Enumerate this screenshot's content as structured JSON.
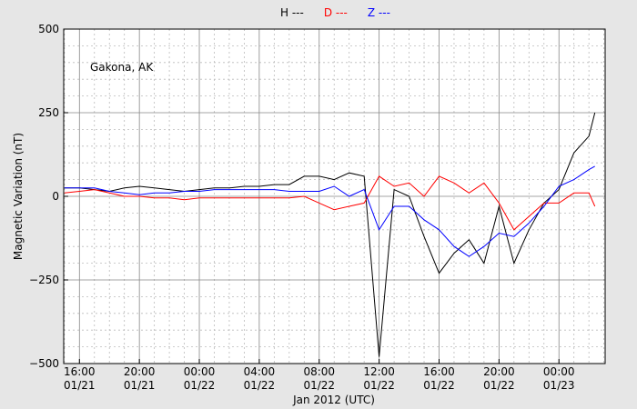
{
  "chart_data": {
    "type": "line",
    "annotation": "Gakona, AK",
    "ylabel": "Magnetic Variation (nT)",
    "xlabel": "Jan 2012 (UTC)",
    "x": [
      "2012-01-21T15:00",
      "2012-01-21T16:00",
      "2012-01-21T17:00",
      "2012-01-21T18:00",
      "2012-01-21T19:00",
      "2012-01-21T20:00",
      "2012-01-21T21:00",
      "2012-01-21T22:00",
      "2012-01-21T23:00",
      "2012-01-22T00:00",
      "2012-01-22T01:00",
      "2012-01-22T02:00",
      "2012-01-22T03:00",
      "2012-01-22T04:00",
      "2012-01-22T05:00",
      "2012-01-22T06:00",
      "2012-01-22T07:00",
      "2012-01-22T08:00",
      "2012-01-22T09:00",
      "2012-01-22T10:00",
      "2012-01-22T11:00",
      "2012-01-22T12:00",
      "2012-01-22T13:00",
      "2012-01-22T14:00",
      "2012-01-22T15:00",
      "2012-01-22T16:00",
      "2012-01-22T17:00",
      "2012-01-22T18:00",
      "2012-01-22T19:00",
      "2012-01-22T20:00",
      "2012-01-22T21:00",
      "2012-01-22T22:00",
      "2012-01-22T23:00",
      "2012-01-23T00:00",
      "2012-01-23T01:00",
      "2012-01-23T02:00",
      "2012-01-23T02:24"
    ],
    "series": [
      {
        "name": "H ---",
        "color": "#000000",
        "values": [
          25,
          25,
          20,
          15,
          25,
          30,
          25,
          20,
          15,
          20,
          25,
          25,
          30,
          30,
          35,
          35,
          60,
          60,
          50,
          70,
          60,
          -480,
          20,
          0,
          -120,
          -230,
          -170,
          -130,
          -200,
          -30,
          -200,
          -100,
          -20,
          20,
          130,
          180,
          250
        ]
      },
      {
        "name": "D ---",
        "color": "#ff0000",
        "values": [
          10,
          15,
          20,
          10,
          0,
          0,
          -5,
          -5,
          -10,
          -5,
          -5,
          -5,
          -5,
          -5,
          -5,
          -5,
          0,
          -20,
          -40,
          -30,
          -20,
          60,
          30,
          40,
          0,
          60,
          40,
          10,
          40,
          -20,
          -100,
          -60,
          -20,
          -20,
          10,
          10,
          -30
        ]
      },
      {
        "name": "Z ---",
        "color": "#0000ff",
        "values": [
          25,
          25,
          25,
          15,
          10,
          5,
          10,
          10,
          15,
          15,
          20,
          20,
          20,
          20,
          20,
          15,
          15,
          15,
          30,
          0,
          20,
          -100,
          -30,
          -30,
          -70,
          -100,
          -150,
          -180,
          -150,
          -110,
          -120,
          -80,
          -30,
          30,
          50,
          80,
          90
        ]
      }
    ],
    "xlim": [
      "2012-01-21T14:57",
      "2012-01-23T03:05"
    ],
    "xticks": [
      {
        "value": "2012-01-21T16:00",
        "label": "16:00 01/21"
      },
      {
        "value": "2012-01-21T20:00",
        "label": "20:00 01/21"
      },
      {
        "value": "2012-01-22T00:00",
        "label": "00:00 01/22"
      },
      {
        "value": "2012-01-22T04:00",
        "label": "04:00 01/22"
      },
      {
        "value": "2012-01-22T08:00",
        "label": "08:00 01/22"
      },
      {
        "value": "2012-01-22T12:00",
        "label": "12:00 01/22"
      },
      {
        "value": "2012-01-22T16:00",
        "label": "16:00 01/22"
      },
      {
        "value": "2012-01-22T20:00",
        "label": "20:00 01/22"
      },
      {
        "value": "2012-01-23T00:00",
        "label": "00:00 01/23"
      }
    ],
    "ylim": [
      -500,
      500
    ],
    "yticks": [
      {
        "value": -500,
        "label": "−500"
      },
      {
        "value": -250,
        "label": "−250"
      },
      0,
      250,
      500
    ],
    "grid": true
  }
}
